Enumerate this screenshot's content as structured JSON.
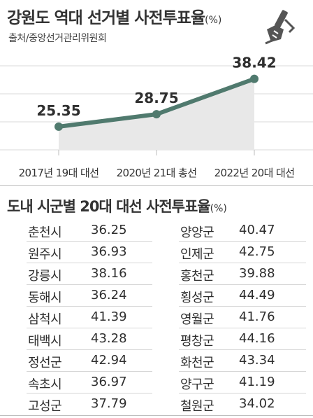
{
  "header": {
    "title": "강원도 역대 선거별 사전투표율",
    "title_unit": "(%)",
    "source": "출처/중앙선거관리위원회"
  },
  "logo": {
    "icon": "ballot-stamp-hand-icon"
  },
  "chart_data": [
    {
      "type": "line",
      "categories": [
        "2017년 19대 대선",
        "2020년 21대 총선",
        "2022년 20대 대선"
      ],
      "values": [
        25.35,
        28.75,
        38.42
      ],
      "data_labels": [
        "25.35",
        "28.75",
        "38.42"
      ],
      "ylim": [
        19,
        42
      ],
      "grid": true,
      "line_color": "#507a6e",
      "fill_color": "#e8e8e8"
    },
    {
      "type": "table",
      "title": "도내 시군별 20대 대선 사전투표율",
      "title_unit": "(%)",
      "rows": [
        {
          "name": "춘천시",
          "value": "36.25"
        },
        {
          "name": "원주시",
          "value": "36.93"
        },
        {
          "name": "강릉시",
          "value": "38.16"
        },
        {
          "name": "동해시",
          "value": "36.24"
        },
        {
          "name": "삼척시",
          "value": "41.39"
        },
        {
          "name": "태백시",
          "value": "43.28"
        },
        {
          "name": "정선군",
          "value": "42.94"
        },
        {
          "name": "속초시",
          "value": "36.97"
        },
        {
          "name": "고성군",
          "value": "37.79"
        },
        {
          "name": "양양군",
          "value": "40.47"
        },
        {
          "name": "인제군",
          "value": "42.75"
        },
        {
          "name": "홍천군",
          "value": "39.88"
        },
        {
          "name": "횡성군",
          "value": "44.49"
        },
        {
          "name": "영월군",
          "value": "41.76"
        },
        {
          "name": "평창군",
          "value": "44.16"
        },
        {
          "name": "화천군",
          "value": "43.34"
        },
        {
          "name": "양구군",
          "value": "41.19"
        },
        {
          "name": "철원군",
          "value": "34.02"
        }
      ]
    }
  ]
}
